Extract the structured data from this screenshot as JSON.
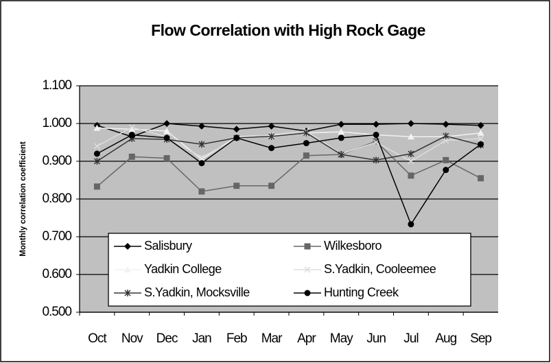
{
  "chart_data": {
    "type": "line",
    "title": "Flow Correlation with High Rock Gage",
    "y_label": "Monthly correlation coefficient",
    "categories": [
      "Oct",
      "Nov",
      "Dec",
      "Jan",
      "Feb",
      "Mar",
      "Apr",
      "May",
      "Jun",
      "Jul",
      "Aug",
      "Sep"
    ],
    "ylim": [
      0.5,
      1.1
    ],
    "yticks": [
      {
        "value": 0.5,
        "label": "0.500"
      },
      {
        "value": 0.6,
        "label": "0.600"
      },
      {
        "value": 0.7,
        "label": "0.700"
      },
      {
        "value": 0.8,
        "label": "0.800"
      },
      {
        "value": 0.9,
        "label": "0.900"
      },
      {
        "value": 1.0,
        "label": "1.000"
      },
      {
        "value": 1.1,
        "label": "1.100"
      }
    ],
    "grid": true,
    "legend_position": "lower-left",
    "series": [
      {
        "name": "Salisbury",
        "color": "#000000",
        "marker": "diamond",
        "values": [
          0.995,
          0.965,
          1.0,
          0.993,
          0.985,
          0.993,
          0.98,
          0.998,
          0.998,
          1.0,
          0.998,
          0.995
        ]
      },
      {
        "name": "Wilkesboro",
        "color": "#666666",
        "marker": "square",
        "values": [
          0.833,
          0.912,
          0.908,
          0.82,
          0.835,
          0.835,
          0.915,
          0.918,
          0.953,
          0.862,
          0.903,
          0.855
        ]
      },
      {
        "name": "Yadkin College",
        "color": "#f2f2f2",
        "marker": "triangle",
        "values": [
          0.988,
          0.985,
          0.98,
          0.905,
          0.965,
          0.968,
          0.975,
          0.978,
          0.97,
          0.965,
          0.965,
          0.975
        ]
      },
      {
        "name": "S.Yadkin, Cooleemee",
        "color": "#dddddd",
        "marker": "x",
        "values": [
          0.94,
          0.99,
          0.965,
          0.91,
          0.96,
          0.97,
          0.98,
          0.92,
          0.95,
          0.9,
          0.955,
          0.96
        ]
      },
      {
        "name": "S.Yadkin, Mocksville",
        "color": "#333333",
        "marker": "star",
        "values": [
          0.9,
          0.96,
          0.958,
          0.945,
          0.962,
          0.966,
          0.975,
          0.918,
          0.903,
          0.92,
          0.967,
          0.943
        ]
      },
      {
        "name": "Hunting Creek",
        "color": "#000000",
        "marker": "circle",
        "values": [
          0.92,
          0.97,
          0.962,
          0.895,
          0.962,
          0.935,
          0.948,
          0.962,
          0.97,
          0.733,
          0.877,
          0.945
        ]
      }
    ]
  }
}
